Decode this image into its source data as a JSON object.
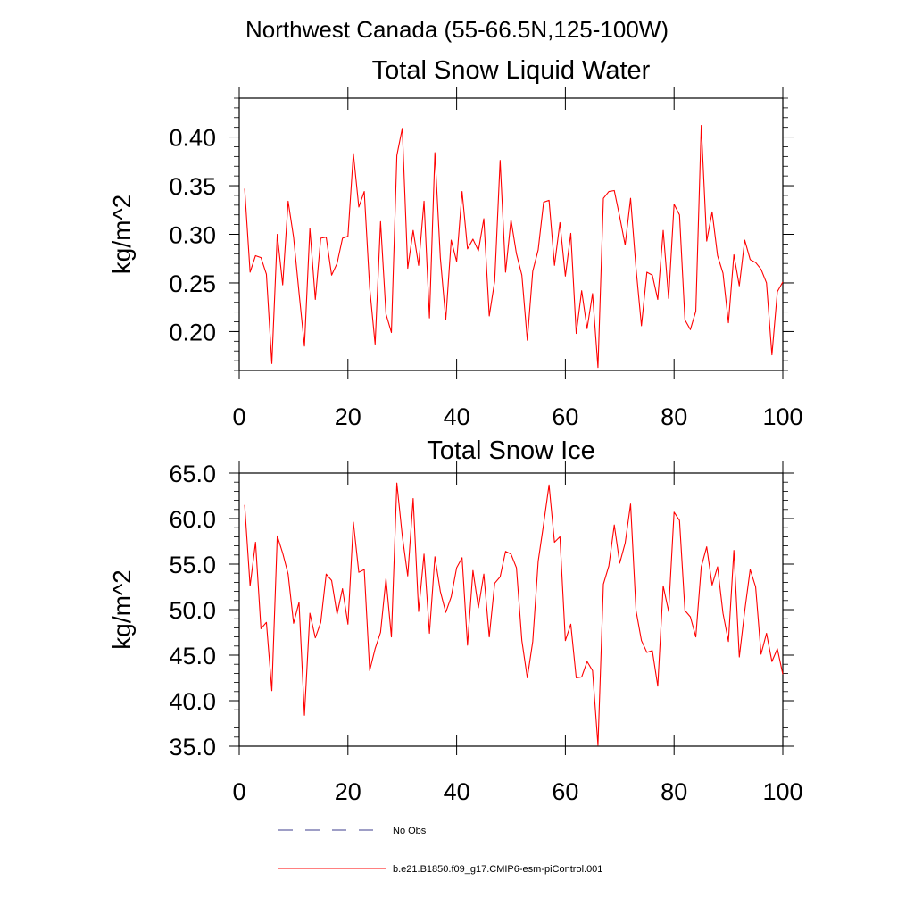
{
  "figure": {
    "region_title": "Northwest Canada (55-66.5N,125-100W)"
  },
  "legend": {
    "position": "bottom",
    "items": [
      {
        "label": "No Obs",
        "style": "dashed",
        "color": "#3c3c8c"
      },
      {
        "label": "b.e21.B1850.f09_g17.CMIP6-esm-piControl.001",
        "style": "solid",
        "color": "#ff0000"
      }
    ]
  },
  "chart_data": [
    {
      "type": "line",
      "title": "Total Snow Liquid Water",
      "xlabel": "",
      "ylabel": "kg/m^2",
      "xlim": [
        0,
        100
      ],
      "ylim": [
        0.16,
        0.44
      ],
      "xticks": [
        0,
        20,
        40,
        60,
        80,
        100
      ],
      "xtick_labels": [
        "0",
        "20",
        "40",
        "60",
        "80",
        "100"
      ],
      "yticks": [
        0.2,
        0.25,
        0.3,
        0.35,
        0.4
      ],
      "ytick_labels": [
        "0.20",
        "0.25",
        "0.30",
        "0.35",
        "0.40"
      ],
      "grid": false,
      "series": [
        {
          "name": "b.e21.B1850.f09_g17.CMIP6-esm-piControl.001",
          "color": "#ff0000",
          "x": [
            1,
            2,
            3,
            4,
            5,
            6,
            7,
            8,
            9,
            10,
            11,
            12,
            13,
            14,
            15,
            16,
            17,
            18,
            19,
            20,
            21,
            22,
            23,
            24,
            25,
            26,
            27,
            28,
            29,
            30,
            31,
            32,
            33,
            34,
            35,
            36,
            37,
            38,
            39,
            40,
            41,
            42,
            43,
            44,
            45,
            46,
            47,
            48,
            49,
            50,
            51,
            52,
            53,
            54,
            55,
            56,
            57,
            58,
            59,
            60,
            61,
            62,
            63,
            64,
            65,
            66,
            67,
            68,
            69,
            70,
            71,
            72,
            73,
            74,
            75,
            76,
            77,
            78,
            79,
            80,
            81,
            82,
            83,
            84,
            85,
            86,
            87,
            88,
            89,
            90,
            91,
            92,
            93,
            94,
            95,
            96,
            97,
            98,
            99,
            100
          ],
          "values": [
            0.347,
            0.261,
            0.278,
            0.276,
            0.259,
            0.167,
            0.3,
            0.248,
            0.334,
            0.297,
            0.24,
            0.185,
            0.306,
            0.233,
            0.296,
            0.297,
            0.258,
            0.27,
            0.296,
            0.298,
            0.383,
            0.328,
            0.344,
            0.245,
            0.187,
            0.313,
            0.218,
            0.199,
            0.381,
            0.409,
            0.265,
            0.304,
            0.268,
            0.334,
            0.214,
            0.384,
            0.276,
            0.212,
            0.294,
            0.272,
            0.344,
            0.285,
            0.295,
            0.283,
            0.316,
            0.216,
            0.252,
            0.376,
            0.261,
            0.315,
            0.28,
            0.258,
            0.191,
            0.262,
            0.284,
            0.333,
            0.335,
            0.268,
            0.312,
            0.257,
            0.301,
            0.198,
            0.242,
            0.203,
            0.239,
            0.163,
            0.337,
            0.344,
            0.345,
            0.318,
            0.289,
            0.337,
            0.265,
            0.206,
            0.261,
            0.258,
            0.233,
            0.304,
            0.234,
            0.331,
            0.32,
            0.212,
            0.202,
            0.221,
            0.412,
            0.293,
            0.323,
            0.278,
            0.26,
            0.209,
            0.279,
            0.247,
            0.294,
            0.274,
            0.271,
            0.264,
            0.25,
            0.176,
            0.241,
            0.251
          ]
        }
      ]
    },
    {
      "type": "line",
      "title": "Total Snow Ice",
      "xlabel": "",
      "ylabel": "kg/m^2",
      "xlim": [
        0,
        100
      ],
      "ylim": [
        35.0,
        65.0
      ],
      "xticks": [
        0,
        20,
        40,
        60,
        80,
        100
      ],
      "xtick_labels": [
        "0",
        "20",
        "40",
        "60",
        "80",
        "100"
      ],
      "yticks": [
        35.0,
        40.0,
        45.0,
        50.0,
        55.0,
        60.0,
        65.0
      ],
      "ytick_labels": [
        "35.0",
        "40.0",
        "45.0",
        "50.0",
        "55.0",
        "60.0",
        "65.0"
      ],
      "grid": false,
      "series": [
        {
          "name": "b.e21.B1850.f09_g17.CMIP6-esm-piControl.001",
          "color": "#ff0000",
          "x": [
            1,
            2,
            3,
            4,
            5,
            6,
            7,
            8,
            9,
            10,
            11,
            12,
            13,
            14,
            15,
            16,
            17,
            18,
            19,
            20,
            21,
            22,
            23,
            24,
            25,
            26,
            27,
            28,
            29,
            30,
            31,
            32,
            33,
            34,
            35,
            36,
            37,
            38,
            39,
            40,
            41,
            42,
            43,
            44,
            45,
            46,
            47,
            48,
            49,
            50,
            51,
            52,
            53,
            54,
            55,
            56,
            57,
            58,
            59,
            60,
            61,
            62,
            63,
            64,
            65,
            66,
            67,
            68,
            69,
            70,
            71,
            72,
            73,
            74,
            75,
            76,
            77,
            78,
            79,
            80,
            81,
            82,
            83,
            84,
            85,
            86,
            87,
            88,
            89,
            90,
            91,
            92,
            93,
            94,
            95,
            96,
            97,
            98,
            99,
            100
          ],
          "values": [
            61.5,
            52.6,
            57.4,
            47.9,
            48.6,
            41.1,
            58.1,
            56.2,
            53.9,
            48.5,
            50.8,
            38.4,
            49.6,
            46.9,
            48.6,
            53.9,
            53.2,
            49.5,
            52.3,
            48.4,
            59.6,
            54.1,
            54.4,
            43.3,
            45.7,
            47.5,
            53.4,
            47.0,
            63.9,
            58.1,
            53.7,
            62.2,
            49.8,
            56.1,
            47.4,
            55.8,
            52.0,
            49.7,
            51.4,
            54.6,
            55.7,
            46.1,
            54.3,
            50.2,
            53.9,
            47.0,
            52.9,
            53.6,
            56.4,
            56.1,
            54.6,
            46.6,
            42.5,
            46.5,
            55.3,
            59.4,
            63.7,
            57.4,
            58.0,
            46.6,
            48.4,
            42.5,
            42.6,
            44.3,
            43.3,
            35.1,
            52.8,
            54.8,
            59.3,
            55.1,
            57.3,
            61.6,
            49.9,
            46.6,
            45.3,
            45.5,
            41.6,
            52.6,
            49.8,
            60.7,
            59.8,
            49.9,
            49.2,
            47.0,
            54.7,
            56.9,
            52.7,
            54.7,
            49.6,
            46.5,
            56.5,
            44.8,
            49.9,
            54.4,
            52.5,
            45.1,
            47.4,
            44.3,
            45.7,
            42.9
          ]
        }
      ]
    }
  ]
}
